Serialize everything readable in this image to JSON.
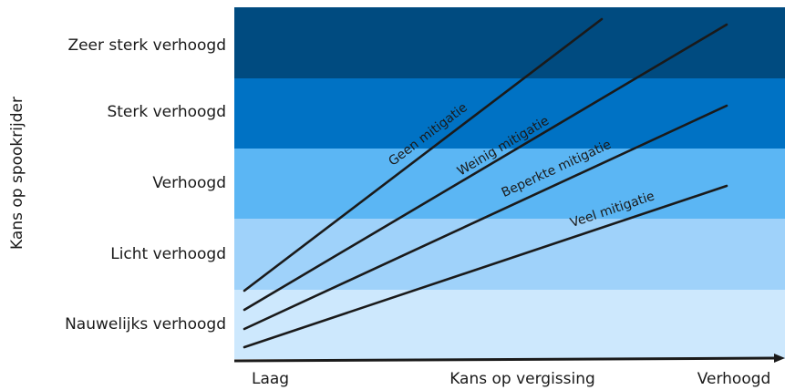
{
  "y_axis_title": "Kans op spookrijder",
  "x_axis": {
    "low_label": "Laag",
    "title": "Kans op vergissing",
    "high_label": "Verhoogd"
  },
  "bands": [
    {
      "label": "Zeer sterk verhoogd",
      "color": "#004b80"
    },
    {
      "label": "Sterk verhoogd",
      "color": "#0072c4"
    },
    {
      "label": "Verhoogd",
      "color": "#5bb6f4"
    },
    {
      "label": "Licht verhoogd",
      "color": "#9fd2fa"
    },
    {
      "label": "Nauwelijks verhoogd",
      "color": "#cde8fd"
    }
  ],
  "lines": [
    {
      "label": "Geen mitigatie"
    },
    {
      "label": "Weinig mitigatie"
    },
    {
      "label": "Beperkte mitigatie"
    },
    {
      "label": "Veel mitigatie"
    }
  ],
  "colors": {
    "line": "#1a1a1a",
    "axis": "#1a1a1a",
    "text": "#1a1a1a"
  }
}
